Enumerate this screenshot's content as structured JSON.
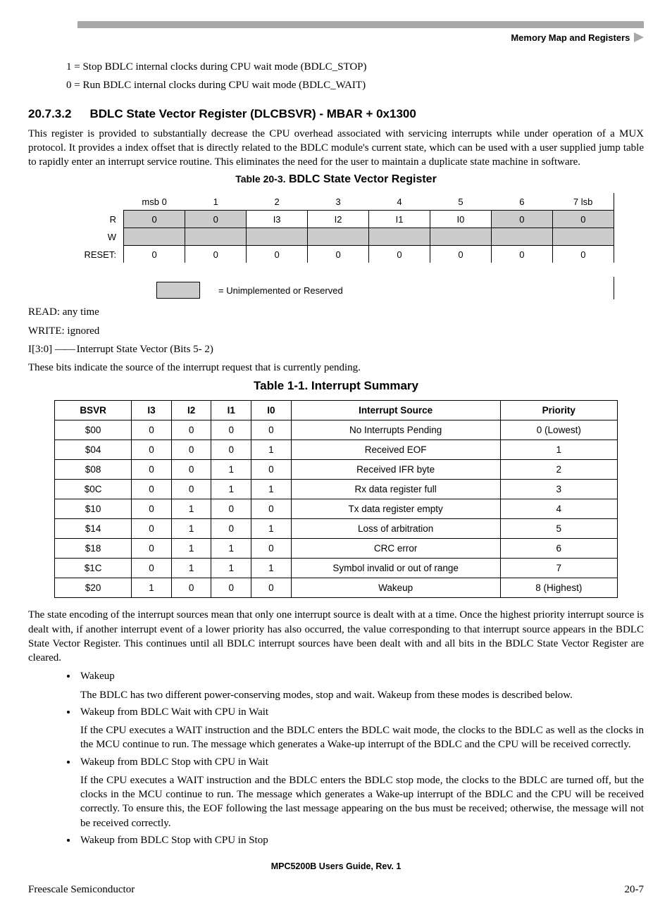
{
  "header_right": "Memory Map and Registers",
  "intro_lines": [
    "1 = Stop BDLC internal clocks during CPU wait mode (BDLC_STOP)",
    "0 = Run BDLC internal clocks during CPU wait mode (BDLC_WAIT)"
  ],
  "section": {
    "number": "20.7.3.2",
    "title": "BDLC State Vector Register (DLCBSVR) - MBAR + 0x1300"
  },
  "section_para": "This register is provided to substantially decrease the CPU overhead associated with servicing interrupts while under operation of a MUX protocol. It provides a index offset that is directly related to the BDLC module's current state, which can be used with a user supplied jump table to rapidly enter an interrupt service routine. This eliminates the need for the user to maintain a duplicate state machine in software.",
  "reg_table": {
    "caption_prefix": "Table 20-3.",
    "caption_title": "BDLC State Vector Register",
    "bit_headers": [
      "msb 0",
      "1",
      "2",
      "3",
      "4",
      "5",
      "6",
      "7 lsb"
    ],
    "row_labels": {
      "r": "R",
      "w": "W",
      "reset": "RESET:"
    },
    "r_cells": [
      "0",
      "0",
      "I3",
      "I2",
      "I1",
      "I0",
      "0",
      "0"
    ],
    "reset_cells": [
      "0",
      "0",
      "0",
      "0",
      "0",
      "0",
      "0",
      "0"
    ],
    "legend": "= Unimplemented or Reserved"
  },
  "after_reg": [
    "READ: any time",
    "WRITE: ignored"
  ],
  "field_line_prefix": "I[3:0]",
  "field_line_suffix": "Interrupt State Vector (Bits 5- 2)",
  "para_after_field": "These bits indicate the source of the interrupt request that is currently pending.",
  "int_table": {
    "caption": "Table 1-1. Interrupt Summary",
    "columns": [
      "BSVR",
      "I3",
      "I2",
      "I1",
      "I0",
      "Interrupt Source",
      "Priority"
    ],
    "rows": [
      [
        "$00",
        "0",
        "0",
        "0",
        "0",
        "No Interrupts Pending",
        "0 (Lowest)"
      ],
      [
        "$04",
        "0",
        "0",
        "0",
        "1",
        "Received EOF",
        "1"
      ],
      [
        "$08",
        "0",
        "0",
        "1",
        "0",
        "Received IFR byte",
        "2"
      ],
      [
        "$0C",
        "0",
        "0",
        "1",
        "1",
        "Rx data register full",
        "3"
      ],
      [
        "$10",
        "0",
        "1",
        "0",
        "0",
        "Tx data register empty",
        "4"
      ],
      [
        "$14",
        "0",
        "1",
        "0",
        "1",
        "Loss of arbitration",
        "5"
      ],
      [
        "$18",
        "0",
        "1",
        "1",
        "0",
        "CRC error",
        "6"
      ],
      [
        "$1C",
        "0",
        "1",
        "1",
        "1",
        "Symbol invalid or out of range",
        "7"
      ],
      [
        "$20",
        "1",
        "0",
        "0",
        "0",
        "Wakeup",
        "8 (Highest)"
      ]
    ]
  },
  "para_after_table": "The state encoding of the interrupt sources mean that only one interrupt source is dealt with at a time. Once the highest priority interrupt source is dealt with, if another interrupt event of a lower priority has also occurred, the value corresponding to that interrupt source appears in the BDLC State Vector Register. This continues until all BDLC interrupt sources have been dealt with and all bits in the BDLC State Vector Register are cleared.",
  "bullets": [
    {
      "head": "Wakeup",
      "body": "The BDLC has two different power-conserving modes, stop and wait. Wakeup from these modes is described below."
    },
    {
      "head": "Wakeup from BDLC Wait with CPU in Wait",
      "body": " If the CPU executes a WAIT instruction and the BDLC enters the BDLC wait mode, the clocks to the BDLC as well as the clocks in the MCU continue to run. The message which generates a Wake-up interrupt of the BDLC and the CPU will be received correctly."
    },
    {
      "head": "Wakeup from BDLC Stop with CPU in Wait",
      "body": "If the CPU executes a WAIT instruction and the BDLC enters the BDLC stop mode, the clocks to the BDLC are turned off, but the clocks in the MCU continue to run. The message which generates a Wake-up interrupt of the BDLC and the CPU will be received correctly. To ensure this, the EOF following the last message appearing on the bus must be received; otherwise, the message will not be received correctly."
    },
    {
      "head": "Wakeup from BDLC Stop with CPU in Stop",
      "body": ""
    }
  ],
  "footer_center": "MPC5200B Users Guide, Rev. 1",
  "footer_left": "Freescale Semiconductor",
  "footer_right": "20-7"
}
